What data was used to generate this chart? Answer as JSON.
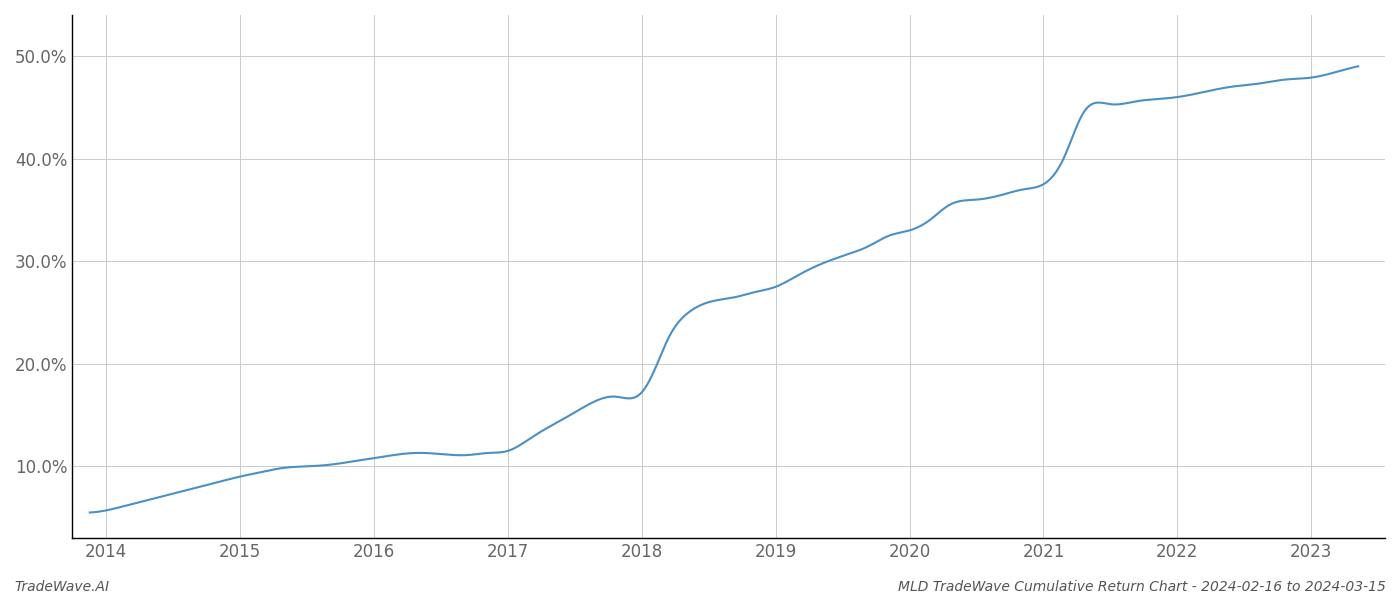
{
  "x_values": [
    2013.88,
    2014.0,
    2014.1,
    2014.25,
    2014.4,
    2014.55,
    2014.7,
    2014.85,
    2015.0,
    2015.15,
    2015.3,
    2015.5,
    2015.7,
    2015.85,
    2016.0,
    2016.15,
    2016.3,
    2016.5,
    2016.7,
    2016.85,
    2017.0,
    2017.2,
    2017.4,
    2017.6,
    2017.8,
    2018.0,
    2018.1,
    2018.2,
    2018.35,
    2018.5,
    2018.7,
    2018.85,
    2019.0,
    2019.15,
    2019.3,
    2019.5,
    2019.7,
    2019.85,
    2020.0,
    2020.15,
    2020.3,
    2020.5,
    2020.7,
    2020.85,
    2021.0,
    2021.15,
    2021.3,
    2021.5,
    2021.7,
    2021.85,
    2022.0,
    2022.2,
    2022.4,
    2022.6,
    2022.8,
    2023.0,
    2023.2,
    2023.35
  ],
  "y_values": [
    5.5,
    5.7,
    6.0,
    6.5,
    7.0,
    7.5,
    8.0,
    8.5,
    9.0,
    9.4,
    9.8,
    10.0,
    10.2,
    10.5,
    10.8,
    11.1,
    11.3,
    11.2,
    11.1,
    11.3,
    11.5,
    13.0,
    14.5,
    16.0,
    16.8,
    17.2,
    19.5,
    22.5,
    25.0,
    26.0,
    26.5,
    27.0,
    27.5,
    28.5,
    29.5,
    30.5,
    31.5,
    32.5,
    33.0,
    34.0,
    35.5,
    36.0,
    36.5,
    37.0,
    37.5,
    40.0,
    44.5,
    45.3,
    45.6,
    45.8,
    46.0,
    46.5,
    47.0,
    47.3,
    47.7,
    47.9,
    48.5,
    49.0
  ],
  "line_color": "#4a90c4",
  "line_width": 1.5,
  "background_color": "#ffffff",
  "grid_color": "#cccccc",
  "x_ticks": [
    2014,
    2015,
    2016,
    2017,
    2018,
    2019,
    2020,
    2021,
    2022,
    2023
  ],
  "x_tick_labels": [
    "2014",
    "2015",
    "2016",
    "2017",
    "2018",
    "2019",
    "2020",
    "2021",
    "2022",
    "2023"
  ],
  "y_ticks": [
    10.0,
    20.0,
    30.0,
    40.0,
    50.0
  ],
  "y_tick_labels": [
    "10.0%",
    "20.0%",
    "30.0%",
    "40.0%",
    "50.0%"
  ],
  "ylim": [
    3.0,
    54.0
  ],
  "xlim": [
    2013.75,
    2023.55
  ],
  "watermark_text": "TradeWave.AI",
  "title_text": "MLD TradeWave Cumulative Return Chart - 2024-02-16 to 2024-03-15",
  "title_fontsize": 10,
  "watermark_fontsize": 10,
  "tick_fontsize": 12,
  "grid_linewidth": 0.7,
  "left_spine_color": "#000000"
}
